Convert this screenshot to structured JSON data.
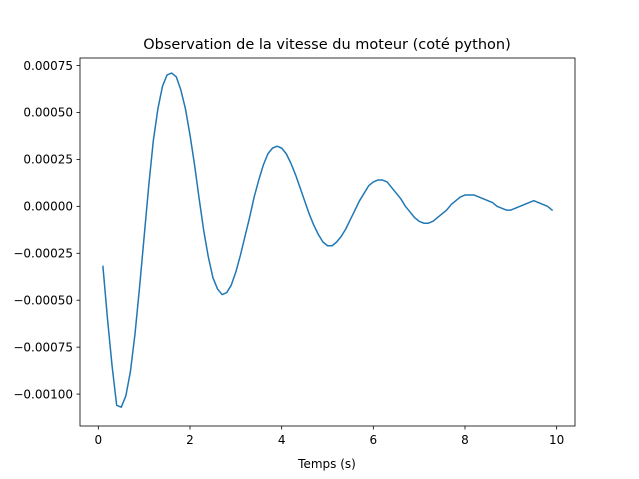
{
  "chart_data": {
    "type": "line",
    "title": "Observation de la vitesse du moteur (coté python)",
    "xlabel": "Temps (s)",
    "ylabel": "",
    "xlim": [
      -0.4,
      10.4
    ],
    "ylim": [
      -0.00117,
      0.00079
    ],
    "xticks": [
      0,
      2,
      4,
      6,
      8,
      10
    ],
    "xtick_labels": [
      "0",
      "2",
      "4",
      "6",
      "8",
      "10"
    ],
    "yticks": [
      -0.001,
      -0.00075,
      -0.0005,
      -0.00025,
      0.0,
      0.00025,
      0.0005,
      0.00075
    ],
    "ytick_labels": [
      "−0.00100",
      "−0.00075",
      "−0.00050",
      "−0.00025",
      "0.00000",
      "0.00025",
      "0.00050",
      "0.00075"
    ],
    "grid": false,
    "color": "#1f77b4",
    "series": [
      {
        "x": [
          0.1,
          0.2,
          0.3,
          0.4,
          0.5,
          0.6,
          0.7,
          0.8,
          0.9,
          1.0,
          1.1,
          1.2,
          1.3,
          1.4,
          1.5,
          1.6,
          1.7,
          1.8,
          1.9,
          2.0,
          2.1,
          2.2,
          2.3,
          2.4,
          2.5,
          2.6,
          2.7,
          2.8,
          2.9,
          3.0,
          3.1,
          3.2,
          3.3,
          3.4,
          3.5,
          3.6,
          3.7,
          3.8,
          3.9,
          4.0,
          4.1,
          4.2,
          4.3,
          4.4,
          4.5,
          4.6,
          4.7,
          4.8,
          4.9,
          5.0,
          5.1,
          5.2,
          5.3,
          5.4,
          5.5,
          5.6,
          5.7,
          5.8,
          5.9,
          6.0,
          6.1,
          6.2,
          6.3,
          6.4,
          6.5,
          6.6,
          6.7,
          6.8,
          6.9,
          7.0,
          7.1,
          7.2,
          7.3,
          7.4,
          7.5,
          7.6,
          7.7,
          7.8,
          7.9,
          8.0,
          8.1,
          8.2,
          8.3,
          8.4,
          8.5,
          8.6,
          8.7,
          8.8,
          8.9,
          9.0,
          9.1,
          9.2,
          9.3,
          9.4,
          9.5,
          9.6,
          9.7,
          9.8,
          9.9
        ],
        "y": [
          -0.00032,
          -0.0006,
          -0.00085,
          -0.00106,
          -0.00107,
          -0.00101,
          -0.00088,
          -0.00068,
          -0.00043,
          -0.00016,
          0.00011,
          0.00035,
          0.00052,
          0.00064,
          0.0007,
          0.00071,
          0.00069,
          0.00062,
          0.00052,
          0.00038,
          0.00022,
          4e-05,
          -0.00013,
          -0.00027,
          -0.00038,
          -0.00044,
          -0.00047,
          -0.00046,
          -0.00042,
          -0.00035,
          -0.00026,
          -0.00016,
          -6e-05,
          5e-05,
          0.00014,
          0.00022,
          0.00028,
          0.00031,
          0.00032,
          0.00031,
          0.00028,
          0.00023,
          0.00017,
          0.0001,
          3e-05,
          -4e-05,
          -0.0001,
          -0.00015,
          -0.00019,
          -0.00021,
          -0.00021,
          -0.00019,
          -0.00016,
          -0.00012,
          -7e-05,
          -2e-05,
          3e-05,
          7e-05,
          0.00011,
          0.00013,
          0.00014,
          0.00014,
          0.00013,
          0.0001,
          7e-05,
          4e-05,
          0.0,
          -3e-05,
          -6e-05,
          -8e-05,
          -9e-05,
          -9e-05,
          -8e-05,
          -6e-05,
          -4e-05,
          -2e-05,
          1e-05,
          3e-05,
          5e-05,
          6e-05,
          6e-05,
          6e-05,
          5e-05,
          4e-05,
          3e-05,
          2e-05,
          0.0,
          -1e-05,
          -2e-05,
          -2e-05,
          -1e-05,
          0.0,
          1e-05,
          2e-05,
          3e-05,
          2e-05,
          1e-05,
          0.0,
          -2e-05
        ]
      }
    ]
  }
}
